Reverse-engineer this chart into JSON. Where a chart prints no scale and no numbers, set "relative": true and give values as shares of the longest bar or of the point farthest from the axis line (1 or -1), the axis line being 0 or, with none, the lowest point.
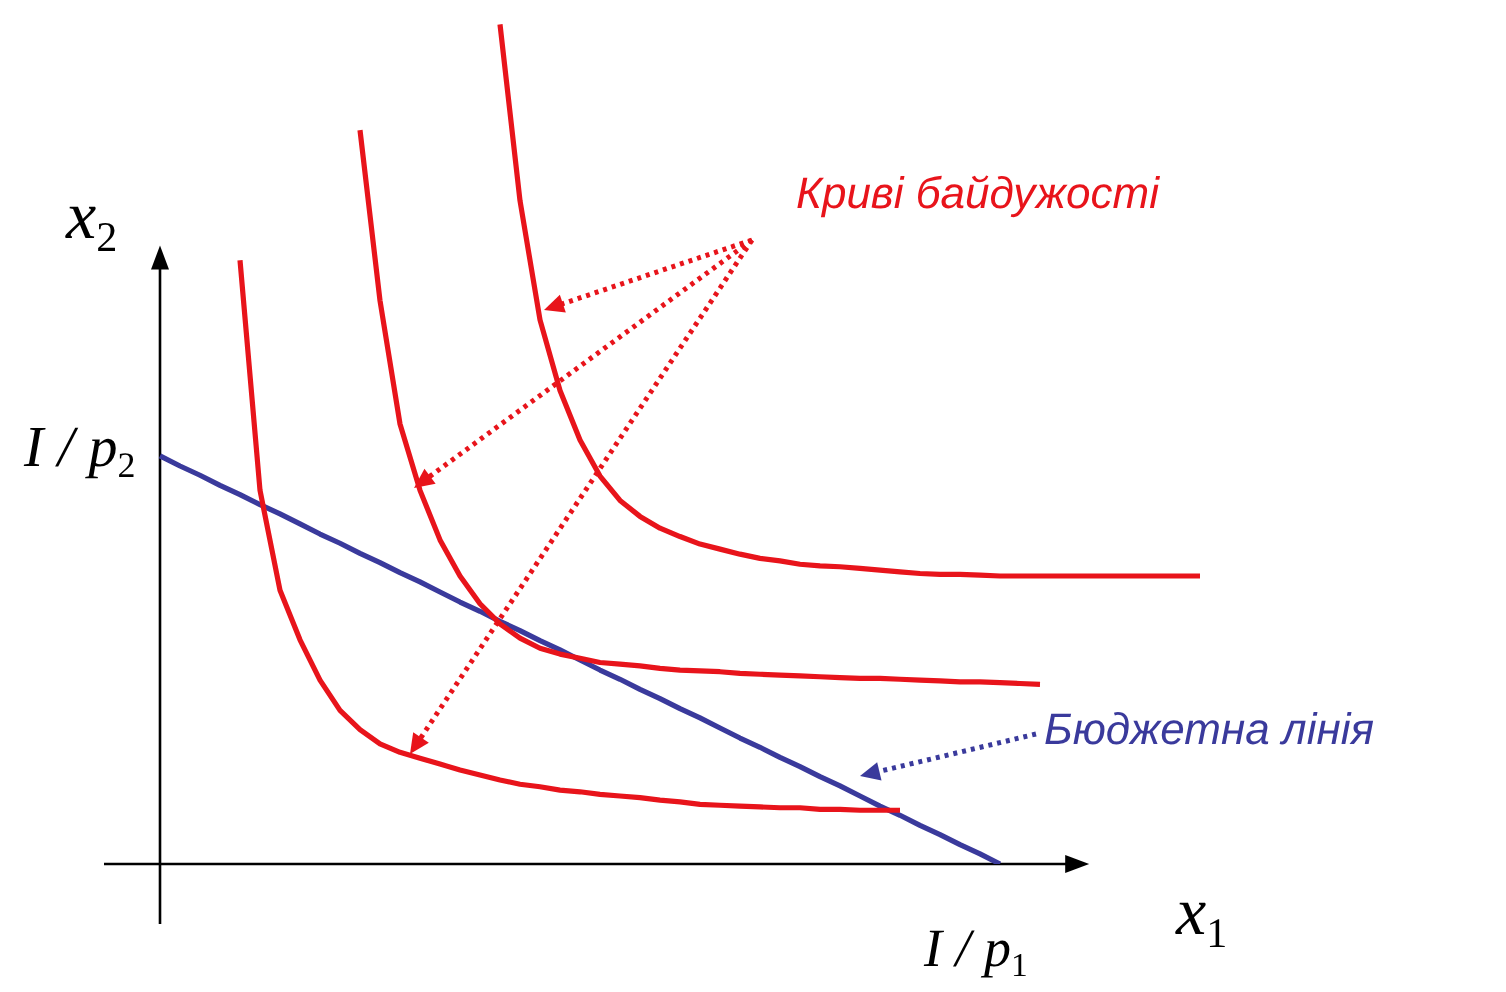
{
  "chart_data": {
    "type": "line",
    "relative": true,
    "xlabel": "x$_{1}$",
    "ylabel": "x$_{2}$",
    "legend": false,
    "marker": "none",
    "categories": [
      null,
      null,
      null,
      null,
      null,
      null,
      null,
      null,
      null,
      null,
      null,
      null,
      null,
      null,
      null,
      null,
      null,
      null,
      null,
      null,
      null,
      null,
      null,
      null,
      null,
      null,
      null,
      null,
      null,
      null,
      null,
      null,
      null,
      null,
      null,
      null,
      null,
      null,
      null,
      null,
      null,
      null,
      null,
      null,
      null,
      null,
      null,
      null,
      null,
      null,
      null,
      null,
      null
    ],
    "annotations": [
      "Криві байдужості",
      "Бюджетна лінія",
      "I / p$_{2}$",
      "I / p$_{1}$"
    ],
    "series": [
      {
        "color": "#e8141b",
        "values": [
          null,
          null,
          null,
          null,
          0.719,
          0.445,
          0.326,
          0.267,
          0.219,
          0.183,
          0.16,
          0.143,
          0.133,
          0.126,
          0.119,
          0.112,
          0.106,
          0.1,
          0.095,
          0.092,
          0.088,
          0.086,
          0.083,
          0.081,
          0.079,
          0.076,
          0.074,
          0.071,
          0.07,
          0.069,
          0.068,
          0.067,
          0.067,
          0.065,
          0.065,
          0.064,
          0.064,
          0.064,
          null,
          null,
          null,
          null,
          null,
          null,
          null,
          null,
          null,
          null,
          null,
          null,
          null,
          null,
          null
        ]
      },
      {
        "color": "#e8141b",
        "values": [
          null,
          null,
          null,
          null,
          null,
          null,
          null,
          null,
          null,
          null,
          0.874,
          0.671,
          0.524,
          0.445,
          0.386,
          0.343,
          0.31,
          0.286,
          0.269,
          0.257,
          0.25,
          0.245,
          0.24,
          0.238,
          0.236,
          0.233,
          0.231,
          0.23,
          0.229,
          0.227,
          0.226,
          0.225,
          0.224,
          0.223,
          0.222,
          0.221,
          0.221,
          0.22,
          0.219,
          0.218,
          0.217,
          0.217,
          0.216,
          0.215,
          0.214,
          null,
          null,
          null,
          null,
          null,
          null,
          null,
          null
        ]
      },
      {
        "color": "#e8141b",
        "values": [
          null,
          null,
          null,
          null,
          null,
          null,
          null,
          null,
          null,
          null,
          null,
          null,
          null,
          null,
          null,
          null,
          null,
          1,
          0.79,
          0.648,
          0.564,
          0.505,
          0.462,
          0.433,
          0.414,
          0.4,
          0.39,
          0.381,
          0.375,
          0.369,
          0.364,
          0.361,
          0.357,
          0.355,
          0.354,
          0.352,
          0.35,
          0.348,
          0.346,
          0.345,
          0.345,
          0.344,
          0.343,
          0.343,
          0.343,
          0.343,
          0.343,
          0.343,
          0.343,
          0.343,
          0.343,
          0.343,
          0.343
        ]
      },
      {
        "color": "#3a3a9c",
        "values": [
          0.486,
          0.474,
          0.463,
          0.451,
          0.44,
          0.428,
          0.417,
          0.405,
          0.393,
          0.382,
          0.37,
          0.359,
          0.347,
          0.336,
          0.324,
          0.312,
          0.301,
          0.289,
          0.278,
          0.266,
          0.255,
          0.243,
          0.231,
          0.22,
          0.208,
          0.197,
          0.185,
          0.174,
          0.162,
          0.15,
          0.139,
          0.127,
          0.116,
          0.104,
          0.093,
          0.081,
          0.069,
          0.058,
          0.046,
          0.035,
          0.023,
          0.012,
          0,
          null,
          null,
          null,
          null,
          null,
          null,
          null,
          null,
          null,
          null
        ]
      }
    ]
  }
}
